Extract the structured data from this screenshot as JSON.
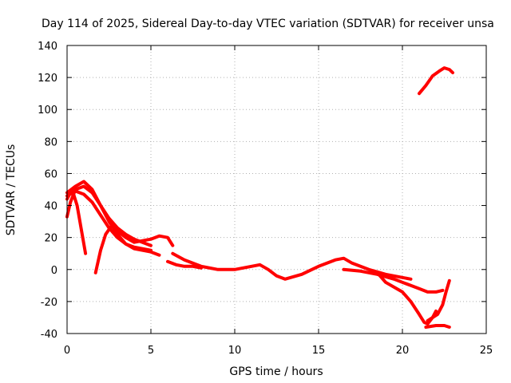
{
  "chart_data": {
    "type": "line",
    "title": "Day 114 of 2025, Sidereal Day-to-day VTEC variation (SDTVAR) for receiver unsa",
    "xlabel": "GPS time / hours",
    "ylabel": "SDTVAR / TECUs",
    "xlim": [
      0,
      25
    ],
    "ylim": [
      -40,
      140
    ],
    "xticks": [
      0,
      5,
      10,
      15,
      20,
      25
    ],
    "yticks": [
      -40,
      -20,
      0,
      20,
      40,
      60,
      80,
      100,
      120,
      140
    ],
    "grid": true,
    "color": "#ff0000",
    "series": [
      {
        "name": "track-1",
        "x": [
          0.0,
          0.3,
          0.6,
          0.9,
          1.1
        ],
        "y": [
          44,
          50,
          40,
          22,
          10
        ]
      },
      {
        "name": "track-2",
        "x": [
          0.0,
          0.2,
          0.5,
          1.0,
          1.5,
          2.0,
          2.5,
          3.0,
          3.5,
          4.0,
          4.5,
          5.0
        ],
        "y": [
          33,
          42,
          50,
          52,
          48,
          40,
          32,
          26,
          22,
          19,
          17,
          15
        ]
      },
      {
        "name": "track-3",
        "x": [
          0.0,
          0.5,
          1.0,
          1.5,
          2.0,
          2.5,
          3.0,
          3.5,
          4.0,
          4.5,
          5.0,
          5.5
        ],
        "y": [
          48,
          52,
          55,
          50,
          40,
          30,
          22,
          16,
          13,
          12,
          11,
          9
        ]
      },
      {
        "name": "track-4",
        "x": [
          0.0,
          0.5,
          1.0,
          1.5,
          2.0,
          2.5,
          3.0,
          3.5,
          4.0,
          4.5,
          5.0
        ],
        "y": [
          46,
          49,
          47,
          42,
          34,
          26,
          20,
          16,
          14,
          13,
          12
        ]
      },
      {
        "name": "track-5",
        "x": [
          1.7,
          2.0,
          2.3,
          2.7,
          3.0,
          3.5,
          4.0,
          4.5,
          5.0,
          5.5,
          6.0,
          6.3
        ],
        "y": [
          -2,
          12,
          22,
          28,
          24,
          20,
          17,
          18,
          19,
          21,
          20,
          15
        ]
      },
      {
        "name": "track-6",
        "x": [
          6.3,
          7.0,
          8.0,
          9.0,
          10.0,
          11.0,
          11.5,
          12.0,
          12.5,
          13.0,
          14.0,
          15.0,
          16.0,
          16.5,
          17.0,
          18.0,
          19.0,
          20.0,
          20.5
        ],
        "y": [
          10,
          6,
          2,
          0,
          0,
          2,
          3,
          0,
          -4,
          -6,
          -3,
          2,
          6,
          7,
          4,
          0,
          -3,
          -5,
          -6
        ]
      },
      {
        "name": "track-7",
        "x": [
          6.0,
          6.5,
          7.0,
          7.5,
          8.0
        ],
        "y": [
          5,
          3,
          2,
          2,
          1
        ]
      },
      {
        "name": "track-8",
        "x": [
          16.5,
          17.5,
          18.5,
          19.5,
          20.5,
          21.0,
          21.5,
          22.0,
          22.4
        ],
        "y": [
          0,
          -1,
          -3,
          -6,
          -10,
          -12,
          -14,
          -14,
          -13
        ]
      },
      {
        "name": "track-9",
        "x": [
          18.5,
          19.0,
          20.0,
          20.5,
          21.0,
          21.3,
          21.5,
          21.8,
          22.0
        ],
        "y": [
          -2,
          -8,
          -14,
          -20,
          -28,
          -33,
          -34,
          -30,
          -26
        ]
      },
      {
        "name": "track-10",
        "x": [
          21.4,
          22.0,
          22.5,
          22.8
        ],
        "y": [
          -36,
          -35,
          -35,
          -36
        ]
      },
      {
        "name": "track-11",
        "x": [
          21.5,
          21.8,
          22.1,
          22.4,
          22.6,
          22.8
        ],
        "y": [
          -32,
          -30,
          -28,
          -22,
          -14,
          -7
        ]
      },
      {
        "name": "track-12",
        "x": [
          21.0,
          21.4,
          21.8,
          22.2,
          22.5,
          22.8,
          23.0
        ],
        "y": [
          110,
          115,
          121,
          124,
          126,
          125,
          123
        ]
      }
    ]
  }
}
